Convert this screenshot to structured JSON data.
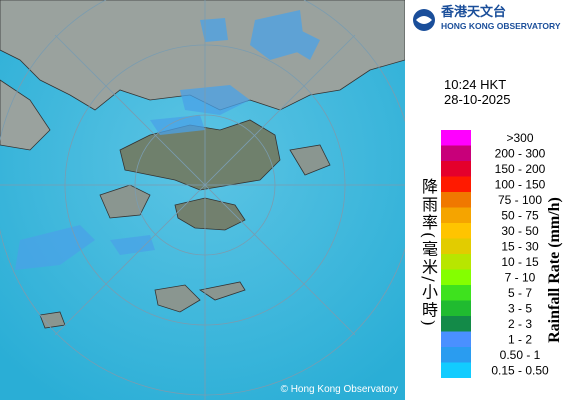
{
  "logo": {
    "chinese": "香港天文台",
    "english": "HONG KONG OBSERVATORY"
  },
  "timestamp": {
    "time": "10:24 HKT",
    "date": "28-10-2025"
  },
  "legend": {
    "title_zh": "降雨率(毫米/小時)",
    "title_en": "Rainfall Rate (mm/h)",
    "items": [
      {
        "label": ">300",
        "color": "#ff00ff"
      },
      {
        "label": "200 - 300",
        "color": "#c8007a"
      },
      {
        "label": "150 - 200",
        "color": "#e4002c"
      },
      {
        "label": "100 - 150",
        "color": "#ff1a00"
      },
      {
        "label": "75 - 100",
        "color": "#f07800"
      },
      {
        "label": "50 - 75",
        "color": "#f5a400"
      },
      {
        "label": "30 - 50",
        "color": "#ffc400"
      },
      {
        "label": "15 - 30",
        "color": "#e2cc00"
      },
      {
        "label": "10 - 15",
        "color": "#b8e600"
      },
      {
        "label": "7 - 10",
        "color": "#84ff00"
      },
      {
        "label": "5 - 7",
        "color": "#3ee21e"
      },
      {
        "label": "3 - 5",
        "color": "#20bb30"
      },
      {
        "label": "2 - 3",
        "color": "#138a48"
      },
      {
        "label": "1 - 2",
        "color": "#4a90ff"
      },
      {
        "label": "0.50 - 1",
        "color": "#2a9cf0"
      },
      {
        "label": "0.15 - 0.50",
        "color": "#12ccff"
      }
    ]
  },
  "copyright": "© Hong Kong Observatory"
}
